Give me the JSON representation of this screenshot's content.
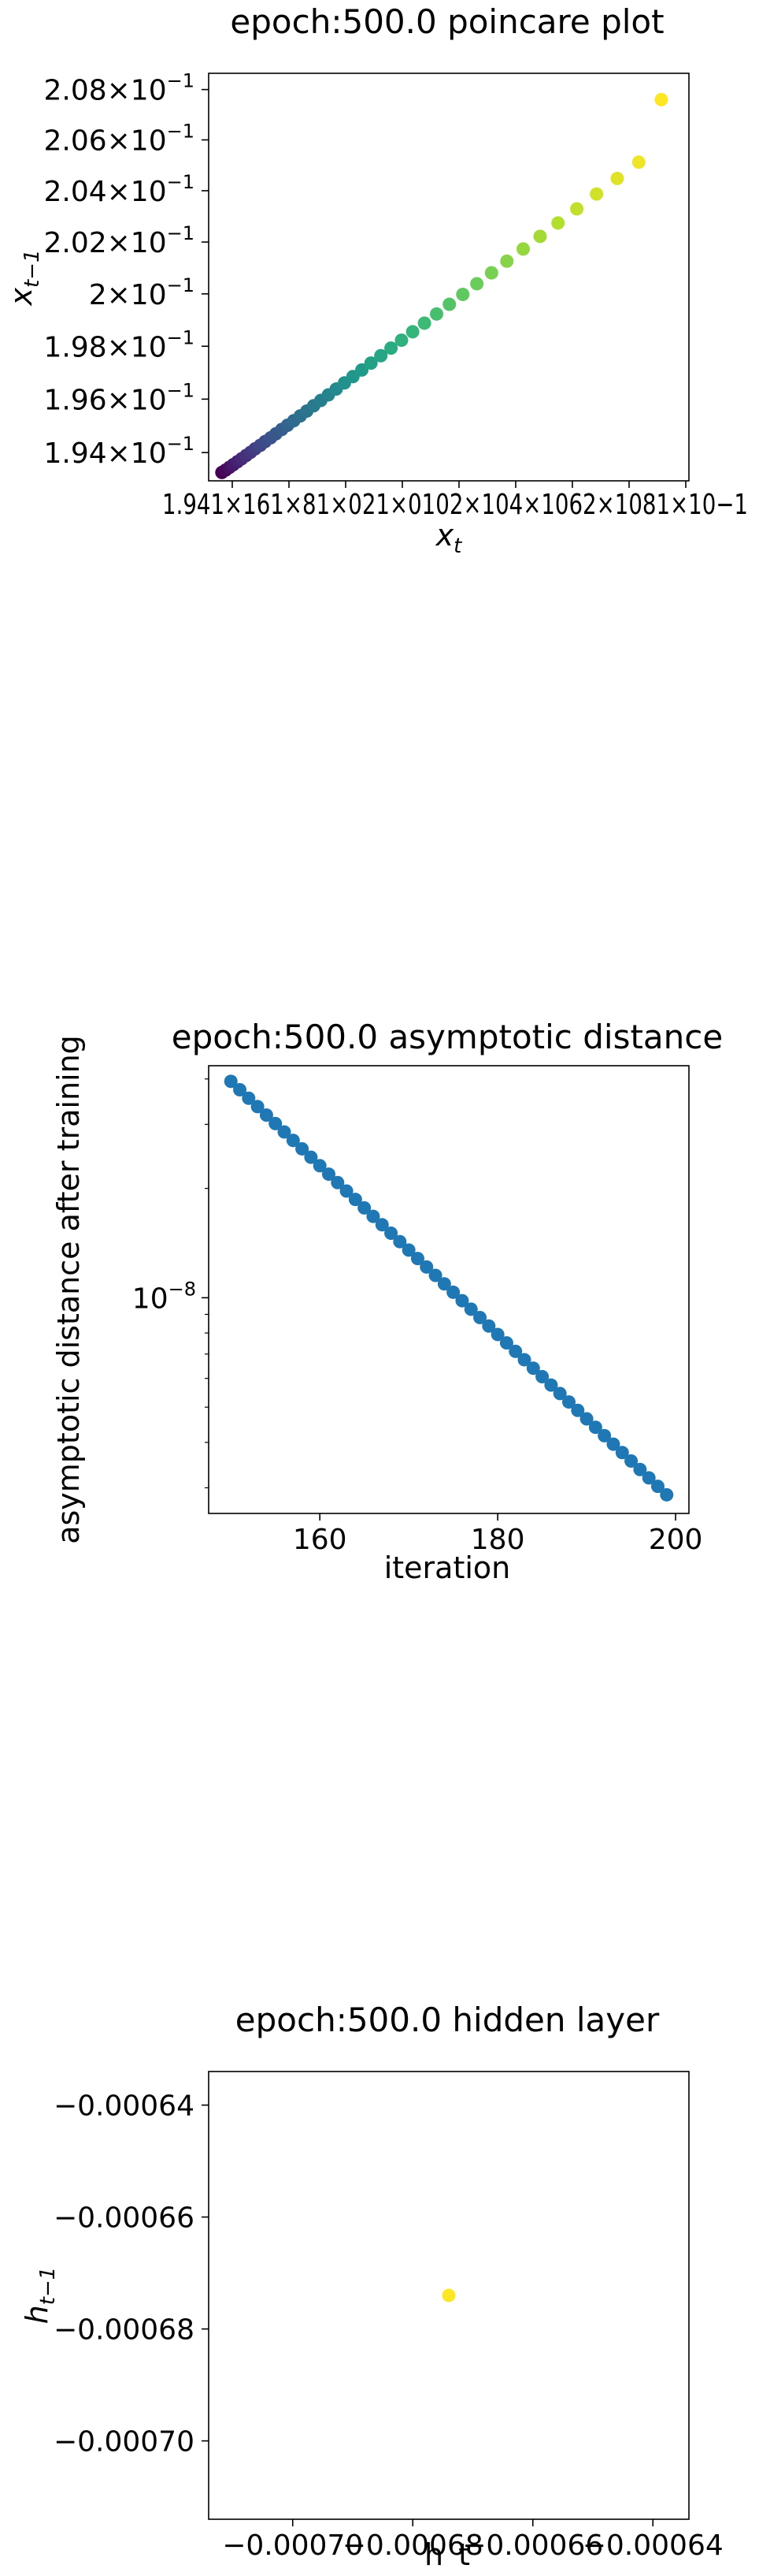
{
  "chart_data": [
    {
      "type": "scatter",
      "title": "epoch:500.0 poincare plot",
      "xlabel_main": "x",
      "xlabel_sub": "t",
      "ylabel_main": "x",
      "ylabel_sub": "t−1",
      "yscale": "log",
      "xscale": "log",
      "xlim": [
        0.19365,
        0.20795
      ],
      "ylim": [
        0.19295,
        0.20865
      ],
      "yticks": [
        {
          "value": 0.194,
          "mant": "1.94",
          "exp": "−1"
        },
        {
          "value": 0.196,
          "mant": "1.96",
          "exp": "−1"
        },
        {
          "value": 0.198,
          "mant": "1.98",
          "exp": "−1"
        },
        {
          "value": 0.2,
          "mant": "2",
          "exp": "−1"
        },
        {
          "value": 0.202,
          "mant": "2.02",
          "exp": "−1"
        },
        {
          "value": 0.204,
          "mant": "2.04",
          "exp": "−1"
        },
        {
          "value": 0.206,
          "mant": "2.06",
          "exp": "−1"
        },
        {
          "value": 0.208,
          "mant": "2.08",
          "exp": "−1"
        }
      ],
      "xtick_text": "1.941×161×81×021×0102×104×1062×1081×10−1",
      "colormap": "viridis",
      "points": {
        "x": [
          0.19403,
          0.19414,
          0.19425,
          0.19436,
          0.19448,
          0.1946,
          0.19473,
          0.19486,
          0.19499,
          0.19514,
          0.19528,
          0.19544,
          0.19559,
          0.19576,
          0.19593,
          0.19611,
          0.1963,
          0.19649,
          0.19669,
          0.1969,
          0.19712,
          0.19735,
          0.19759,
          0.19784,
          0.1981,
          0.19837,
          0.19866,
          0.19896,
          0.19927,
          0.1996,
          0.19995,
          0.20031,
          0.20069,
          0.20109,
          0.20151,
          0.20195,
          0.20241,
          0.2029,
          0.20341,
          0.20395,
          0.20452,
          0.20512,
          0.20575,
          0.20641,
          0.2071
        ],
        "y": [
          0.19326,
          0.19335,
          0.19345,
          0.19355,
          0.19366,
          0.19377,
          0.19389,
          0.19401,
          0.19414,
          0.19427,
          0.19441,
          0.19455,
          0.1947,
          0.19486,
          0.19502,
          0.19519,
          0.19537,
          0.19555,
          0.19575,
          0.19595,
          0.19616,
          0.19638,
          0.19661,
          0.19685,
          0.1971,
          0.19736,
          0.19764,
          0.19793,
          0.19823,
          0.19855,
          0.19888,
          0.19923,
          0.1996,
          0.19998,
          0.20039,
          0.20081,
          0.20126,
          0.20173,
          0.20222,
          0.20274,
          0.20329,
          0.20387,
          0.20448,
          0.20512,
          0.2076
        ]
      }
    },
    {
      "type": "scatter",
      "title": "epoch:500.0 asymptotic distance",
      "xlabel": "iteration",
      "ylabel": "asymptotic distance after training",
      "yscale": "log",
      "xlim": [
        147.5,
        201.5
      ],
      "ylim": [
        2.55e-09,
        4.35e-08
      ],
      "xticks": [
        160,
        180,
        200
      ],
      "ytick_major": {
        "value": 1e-08,
        "base": "10",
        "exp": "−8"
      },
      "y_minor": [
        3e-09,
        4e-09,
        5e-09,
        6e-09,
        7e-09,
        8e-09,
        9e-09,
        2e-08,
        3e-08,
        4e-08
      ],
      "color": "#1f77b4",
      "points": {
        "x_start": 150,
        "x_end": 199,
        "y_start": 3.94e-08,
        "y_end": 2.87e-09
      }
    },
    {
      "type": "scatter",
      "title": "epoch:500.0 hidden layer",
      "xlabel": "h_t",
      "ylabel_main": "h",
      "ylabel_sub": "t−1",
      "xlim": [
        -0.000714,
        -0.000634
      ],
      "ylim": [
        -0.000714,
        -0.000634
      ],
      "xticks": [
        {
          "value": -0.0007,
          "label": "−0.00070"
        },
        {
          "value": -0.00068,
          "label": "−0.00068"
        },
        {
          "value": -0.00066,
          "label": "−0.00066"
        },
        {
          "value": -0.00064,
          "label": "−0.00064"
        }
      ],
      "yticks": [
        {
          "value": -0.00064,
          "label": "−0.00064"
        },
        {
          "value": -0.00066,
          "label": "−0.00066"
        },
        {
          "value": -0.00068,
          "label": "−0.00068"
        },
        {
          "value": -0.0007,
          "label": "−0.00070"
        }
      ],
      "point": {
        "x": -0.000674,
        "y": -0.000674,
        "color": "#fde725"
      }
    }
  ]
}
